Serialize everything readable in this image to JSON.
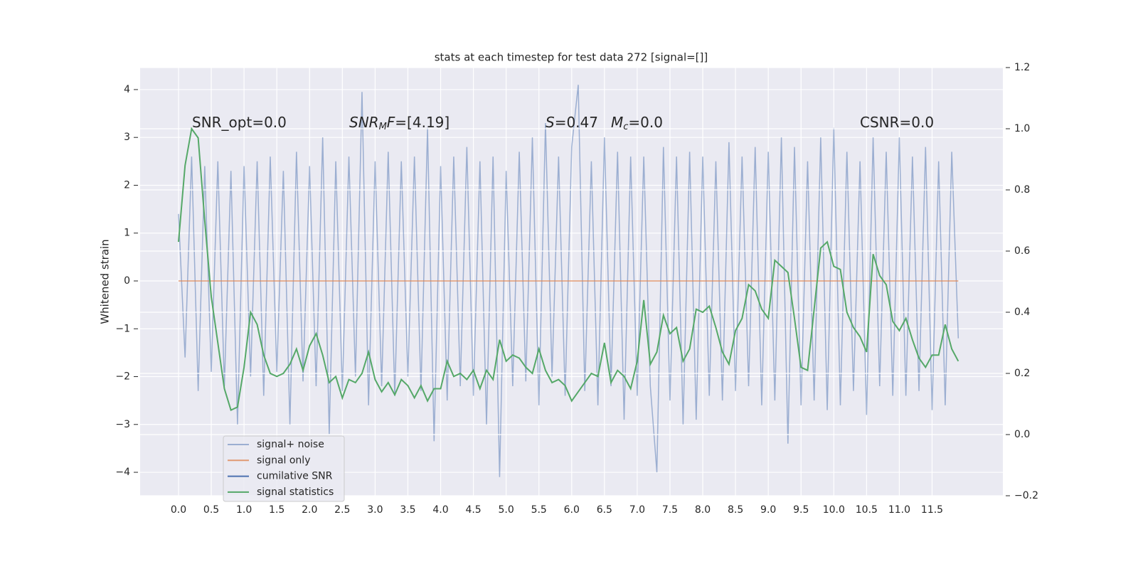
{
  "chart_data": {
    "type": "line",
    "title": "stats at each timestep for test data 272 [signal=[]]",
    "ylabel": "Whitened strain",
    "x": [
      0.0,
      0.1,
      0.2,
      0.3,
      0.4,
      0.5,
      0.6,
      0.7,
      0.8,
      0.9,
      1.0,
      1.1,
      1.2,
      1.3,
      1.4,
      1.5,
      1.6,
      1.7,
      1.8,
      1.9,
      2.0,
      2.1,
      2.2,
      2.3,
      2.4,
      2.5,
      2.6,
      2.7,
      2.8,
      2.9,
      3.0,
      3.1,
      3.2,
      3.3,
      3.4,
      3.5,
      3.6,
      3.7,
      3.8,
      3.9,
      4.0,
      4.1,
      4.2,
      4.3,
      4.4,
      4.5,
      4.6,
      4.7,
      4.8,
      4.9,
      5.0,
      5.1,
      5.2,
      5.3,
      5.4,
      5.5,
      5.6,
      5.7,
      5.8,
      5.9,
      6.0,
      6.1,
      6.2,
      6.3,
      6.4,
      6.5,
      6.6,
      6.7,
      6.8,
      6.9,
      7.0,
      7.1,
      7.2,
      7.3,
      7.4,
      7.5,
      7.6,
      7.7,
      7.8,
      7.9,
      8.0,
      8.1,
      8.2,
      8.3,
      8.4,
      8.5,
      8.6,
      8.7,
      8.8,
      8.9,
      9.0,
      9.1,
      9.2,
      9.3,
      9.4,
      9.5,
      9.6,
      9.7,
      9.8,
      9.9,
      10.0,
      10.1,
      10.2,
      10.3,
      10.4,
      10.5,
      10.6,
      10.7,
      10.8,
      10.9,
      11.0,
      11.1,
      11.2,
      11.3,
      11.4,
      11.5,
      11.6,
      11.7,
      11.8,
      11.9
    ],
    "series": [
      {
        "name": "signal+ noise",
        "color": "#4c72b0",
        "opacity": 0.5,
        "values": [
          1.4,
          -1.6,
          2.6,
          -2.3,
          2.4,
          -1.9,
          2.5,
          -2.2,
          2.3,
          -3.0,
          2.4,
          -2.0,
          2.5,
          -2.4,
          2.6,
          -1.9,
          2.3,
          -3.0,
          2.7,
          -2.1,
          2.4,
          -2.2,
          3.0,
          -3.2,
          2.5,
          -2.3,
          2.6,
          -2.0,
          3.95,
          -2.6,
          2.5,
          -2.2,
          2.7,
          -2.4,
          2.5,
          -2.0,
          2.6,
          -2.3,
          3.2,
          -3.35,
          2.4,
          -2.5,
          2.6,
          -2.2,
          2.8,
          -2.4,
          2.5,
          -3.0,
          2.6,
          -4.1,
          2.3,
          -2.2,
          2.7,
          -2.1,
          3.0,
          -2.6,
          3.3,
          -2.0,
          2.6,
          -2.4,
          2.8,
          4.1,
          -2.3,
          2.5,
          -2.6,
          3.0,
          -2.2,
          2.7,
          -2.9,
          2.6,
          -2.4,
          2.6,
          -2.2,
          -4.0,
          2.8,
          -2.5,
          2.6,
          -3.0,
          2.7,
          -2.9,
          2.6,
          -2.4,
          2.5,
          -2.5,
          2.9,
          -2.3,
          2.6,
          -2.2,
          2.8,
          -2.6,
          2.7,
          -2.5,
          3.0,
          -3.4,
          2.8,
          -2.6,
          2.5,
          -2.5,
          3.0,
          -2.7,
          3.2,
          -2.6,
          2.7,
          -2.3,
          2.5,
          -2.8,
          3.0,
          -2.2,
          2.7,
          -2.4,
          3.0,
          -2.4,
          2.6,
          -2.3,
          2.8,
          -2.7,
          2.5,
          -2.6,
          2.7,
          -1.2
        ]
      },
      {
        "name": "signal only",
        "color": "#dd8452",
        "opacity": 0.8,
        "values": [
          0,
          0,
          0,
          0,
          0,
          0,
          0,
          0,
          0,
          0,
          0,
          0,
          0,
          0,
          0,
          0,
          0,
          0,
          0,
          0,
          0,
          0,
          0,
          0,
          0,
          0,
          0,
          0,
          0,
          0,
          0,
          0,
          0,
          0,
          0,
          0,
          0,
          0,
          0,
          0,
          0,
          0,
          0,
          0,
          0,
          0,
          0,
          0,
          0,
          0,
          0,
          0,
          0,
          0,
          0,
          0,
          0,
          0,
          0,
          0,
          0,
          0,
          0,
          0,
          0,
          0,
          0,
          0,
          0,
          0,
          0,
          0,
          0,
          0,
          0,
          0,
          0,
          0,
          0,
          0,
          0,
          0,
          0,
          0,
          0,
          0,
          0,
          0,
          0,
          0,
          0,
          0,
          0,
          0,
          0,
          0,
          0,
          0,
          0,
          0,
          0,
          0,
          0,
          0,
          0,
          0,
          0,
          0,
          0,
          0,
          0,
          0,
          0,
          0,
          0,
          0,
          0,
          0,
          0,
          0
        ]
      },
      {
        "name": "cumilative SNR",
        "color": "#4c72b0",
        "opacity": 1
      },
      {
        "name": "signal statistics",
        "color": "#55a868",
        "opacity": 1,
        "axis": "y2",
        "values": [
          0.63,
          0.88,
          1.0,
          0.97,
          0.7,
          0.45,
          0.3,
          0.15,
          0.08,
          0.09,
          0.22,
          0.4,
          0.36,
          0.26,
          0.2,
          0.19,
          0.2,
          0.23,
          0.28,
          0.21,
          0.29,
          0.33,
          0.26,
          0.17,
          0.19,
          0.12,
          0.18,
          0.17,
          0.2,
          0.27,
          0.18,
          0.14,
          0.17,
          0.13,
          0.18,
          0.16,
          0.12,
          0.16,
          0.11,
          0.15,
          0.15,
          0.24,
          0.19,
          0.2,
          0.18,
          0.21,
          0.15,
          0.21,
          0.18,
          0.31,
          0.24,
          0.26,
          0.25,
          0.22,
          0.2,
          0.28,
          0.21,
          0.17,
          0.18,
          0.16,
          0.11,
          0.14,
          0.17,
          0.2,
          0.19,
          0.3,
          0.17,
          0.21,
          0.19,
          0.15,
          0.24,
          0.44,
          0.23,
          0.27,
          0.39,
          0.33,
          0.35,
          0.24,
          0.28,
          0.41,
          0.4,
          0.42,
          0.35,
          0.27,
          0.23,
          0.34,
          0.38,
          0.49,
          0.47,
          0.41,
          0.38,
          0.57,
          0.55,
          0.53,
          0.38,
          0.22,
          0.21,
          0.41,
          0.61,
          0.63,
          0.55,
          0.54,
          0.4,
          0.35,
          0.32,
          0.27,
          0.59,
          0.52,
          0.49,
          0.37,
          0.34,
          0.38,
          0.31,
          0.25,
          0.22,
          0.26,
          0.26,
          0.36,
          0.28,
          0.24
        ]
      }
    ],
    "xlim": [
      -0.586,
      12.58
    ],
    "ylim": [
      -4.49,
      4.46
    ],
    "y2lim": [
      -0.2,
      1.2
    ],
    "xticks": [
      {
        "value": 0,
        "label": "0.0"
      },
      0.5,
      {
        "value": 1,
        "label": "1.0"
      },
      1.5,
      {
        "value": 2,
        "label": "2.0"
      },
      2.5,
      {
        "value": 3,
        "label": "3.0"
      },
      3.5,
      {
        "value": 4,
        "label": "4.0"
      },
      4.5,
      {
        "value": 5,
        "label": "5.0"
      },
      5.5,
      {
        "value": 6,
        "label": "6.0"
      },
      6.5,
      {
        "value": 7,
        "label": "7.0"
      },
      7.5,
      {
        "value": 8,
        "label": "8.0"
      },
      8.5,
      {
        "value": 9,
        "label": "9.0"
      },
      9.5,
      {
        "value": 10,
        "label": "10.0"
      },
      10.5,
      {
        "value": 11,
        "label": "11.0"
      },
      11.5
    ],
    "yticks": [
      {
        "value": -4,
        "label": "−4"
      },
      {
        "value": -3,
        "label": "−3"
      },
      {
        "value": -2,
        "label": "−2"
      },
      {
        "value": -1,
        "label": "−1"
      },
      0,
      1,
      2,
      3,
      4
    ],
    "y2ticks": [
      {
        "value": -0.2,
        "label": "−0.2"
      },
      {
        "value": 0,
        "label": "0.0"
      },
      0.2,
      0.4,
      0.6,
      0.8,
      {
        "value": 1,
        "label": "1.0"
      },
      1.2
    ],
    "grid": true,
    "legend": "lower left",
    "annotations": [
      {
        "parts": [
          {
            "text": "SNR_opt=0.0",
            "style": "normal"
          }
        ]
      },
      {
        "parts": [
          {
            "text": "SNR",
            "style": "italic"
          },
          {
            "text": "M",
            "style": "sub"
          },
          {
            "text": "F",
            "style": "italic"
          },
          {
            "text": "=[4.19]",
            "style": "normal"
          }
        ]
      },
      {
        "parts": [
          {
            "text": "S",
            "style": "italic"
          },
          {
            "text": "=0.47",
            "style": "normal"
          }
        ]
      },
      {
        "parts": [
          {
            "text": "M",
            "style": "italic"
          },
          {
            "text": "c",
            "style": "sub"
          },
          {
            "text": "=0.0",
            "style": "normal"
          }
        ]
      },
      {
        "parts": [
          {
            "text": "CSNR=0.0",
            "style": "normal"
          }
        ]
      }
    ]
  }
}
